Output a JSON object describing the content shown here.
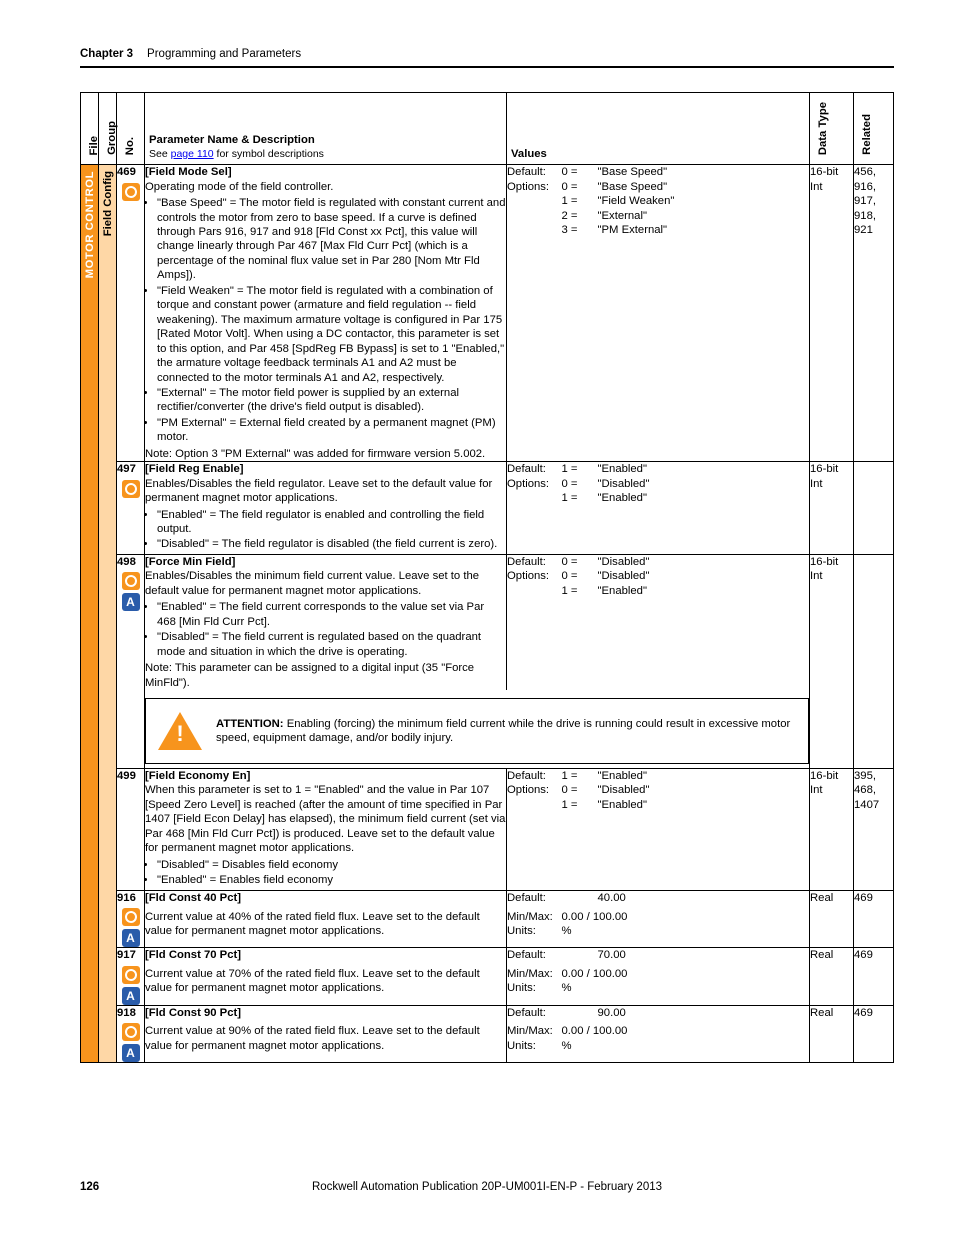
{
  "chapter_label": "Chapter 3",
  "chapter_title": "Programming and Parameters",
  "page_number": "126",
  "publication": "Rockwell Automation Publication 20P-UM001I-EN-P - February 2013",
  "headers": {
    "file": "File",
    "group": "Group",
    "no": "No.",
    "param": "Parameter Name & Description",
    "param_note_pre": "See ",
    "param_note_link": "page 110",
    "param_note_post": " for symbol descriptions",
    "values": "Values",
    "datatype": "Data Type",
    "related": "Related"
  },
  "file_label": "MOTOR CONTROL",
  "group_label": "Field Config",
  "value_labels": {
    "default": "Default:",
    "options": "Options:",
    "minmax": "Min/Max:",
    "units": "Units:"
  },
  "attention": {
    "label": "ATTENTION:",
    "text": " Enabling (forcing) the minimum field current while the drive is running could result in excessive motor speed, equipment damage, and/or bodily injury."
  },
  "rows": [
    {
      "no": "469",
      "name": "[Field Mode Sel]",
      "intro": "Operating mode of the field controller.",
      "bullets": [
        "\"Base Speed\" = The motor field is regulated with constant current and controls the motor from zero to base speed. If a curve is defined through Pars 916, 917 and 918 [Fld Const xx Pct], this value will change linearly through Par 467 [Max Fld Curr Pct] (which is a percentage of the nominal flux value set in Par 280 [Nom Mtr Fld Amps]).",
        "\"Field Weaken\" = The motor field is regulated with a combination of torque and constant power (armature and field regulation -- field weakening). The maximum armature voltage is configured in Par 175 [Rated Motor Volt]. When using a DC contactor, this parameter is set to this option, and Par 458 [SpdReg FB Bypass] is set to 1 \"Enabled,\" the armature voltage feedback terminals A1 and A2 must be connected to the motor terminals A1 and A2, respectively.",
        "\"External\" = The motor field power is supplied by an external rectifier/converter (the drive's field output is disabled).",
        "\"PM External\" = External field created by a permanent magnet (PM) motor."
      ],
      "note": "Note: Option 3 \"PM External\" was added for firmware version 5.002.",
      "default_num": "0 =",
      "default_txt": "\"Base Speed\"",
      "options": [
        {
          "n": "0 =",
          "t": "\"Base Speed\""
        },
        {
          "n": "1 =",
          "t": "\"Field Weaken\""
        },
        {
          "n": "2 =",
          "t": "\"External\""
        },
        {
          "n": "3 =",
          "t": "\"PM External\""
        }
      ],
      "dt": "16-bit Int",
      "rel": "456, 916, 917, 918, 921",
      "icons": [
        "circle"
      ]
    },
    {
      "no": "497",
      "name": "[Field Reg Enable]",
      "intro": "Enables/Disables the field regulator. Leave set to the default value for permanent magnet motor applications.",
      "bullets": [
        "\"Enabled\" = The field regulator is enabled and controlling the field output.",
        "\"Disabled\" = The field regulator is disabled (the field current is zero)."
      ],
      "default_num": "1 =",
      "default_txt": "\"Enabled\"",
      "options": [
        {
          "n": "0 =",
          "t": "\"Disabled\""
        },
        {
          "n": "1 =",
          "t": "\"Enabled\""
        }
      ],
      "dt": "16-bit Int",
      "rel": "",
      "icons": [
        "circle"
      ]
    },
    {
      "no": "498",
      "name": "[Force Min Field]",
      "intro": "Enables/Disables the minimum field current value. Leave set to the default value for permanent magnet motor applications.",
      "bullets": [
        "\"Enabled\" = The field current corresponds to the value set via Par 468 [Min Fld Curr Pct].",
        "\"Disabled\" = The field current is regulated based on the quadrant mode and situation in which the drive is operating."
      ],
      "note": "Note: This parameter can be assigned to a digital input (35 \"Force MinFld\").",
      "default_num": "0 =",
      "default_txt": "\"Disabled\"",
      "options": [
        {
          "n": "0 =",
          "t": "\"Disabled\""
        },
        {
          "n": "1 =",
          "t": "\"Enabled\""
        }
      ],
      "dt": "16-bit Int",
      "rel": "",
      "icons": [
        "circle",
        "a"
      ],
      "attention": true
    },
    {
      "no": "499",
      "name": "[Field Economy En]",
      "intro": "When this parameter is set to 1 = \"Enabled\" and the value in Par 107 [Speed Zero Level] is reached (after the amount of time specified in Par 1407 [Field Econ Delay] has elapsed), the minimum field current (set via Par 468 [Min Fld Curr Pct]) is produced. Leave set to the default value for permanent magnet motor applications.",
      "bullets": [
        "\"Disabled\" = Disables field economy",
        "\"Enabled\" = Enables field economy"
      ],
      "default_num": "1 =",
      "default_txt": "\"Enabled\"",
      "options": [
        {
          "n": "0 =",
          "t": "\"Disabled\""
        },
        {
          "n": "1 =",
          "t": "\"Enabled\""
        }
      ],
      "dt": "16-bit Int",
      "rel": "395, 468, 1407",
      "icons": []
    },
    {
      "no": "916",
      "name": "[Fld Const 40 Pct]",
      "intro": "Current value at 40% of the rated field flux. Leave set to the default value for permanent magnet motor applications.",
      "default_txt": "40.00",
      "minmax": "0.00 / 100.00",
      "units": "%",
      "dt": "Real",
      "rel": "469",
      "icons": [
        "circle",
        "a"
      ]
    },
    {
      "no": "917",
      "name": "[Fld Const 70 Pct]",
      "intro": "Current value at 70% of the rated field flux. Leave set to the default value for permanent magnet motor applications.",
      "default_txt": "70.00",
      "minmax": "0.00 / 100.00",
      "units": "%",
      "dt": "Real",
      "rel": "469",
      "icons": [
        "circle",
        "a"
      ]
    },
    {
      "no": "918",
      "name": "[Fld Const 90 Pct]",
      "intro": "Current value at 90% of the rated field flux. Leave set to the default value for permanent magnet motor applications.",
      "default_txt": "90.00",
      "minmax": "0.00 / 100.00",
      "units": "%",
      "dt": "Real",
      "rel": "469",
      "icons": [
        "circle",
        "a"
      ]
    }
  ]
}
